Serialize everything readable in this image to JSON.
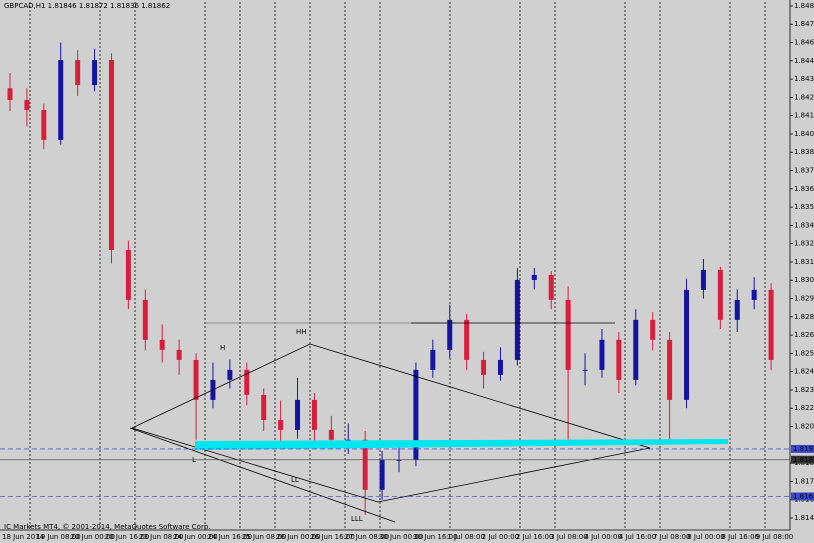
{
  "chart_data": {
    "type": "candlestick",
    "title": "GBPCAD,H1  1.81846 1.81872 1.81836 1.81862",
    "footer": "IC Markets MT4, © 2001-2014, MetaQuotes Software Corp.",
    "annotations": [
      "HH",
      "H",
      "L",
      "LL",
      "LLL"
    ],
    "categories": [
      "18 Jun 2014",
      "19 Jun 08:00",
      "20 Jun 00:00",
      "20 Jun 16:00",
      "23 Jun 08:00",
      "24 Jun 00:00",
      "24 Jun 16:00",
      "25 Jun 08:00",
      "26 Jun 00:00",
      "26 Jun 16:00",
      "27 Jun 08:00",
      "30 Jun 00:00",
      "30 Jun 16:00",
      "1 Jul 08:00",
      "2 Jul 00:00",
      "2 Jul 16:00",
      "3 Jul 08:00",
      "4 Jul 00:00",
      "4 Jul 16:00",
      "7 Jul 08:00",
      "8 Jul 00:00",
      "8 Jul 16:00",
      "9 Jul 08:00"
    ],
    "up_color": "#1414a0",
    "down_color": "#d81e3c",
    "open": [
      1.843,
      1.84223,
      1.84157,
      1.83961,
      1.84485,
      1.84321,
      1.84485,
      1.83239,
      1.82911,
      1.82649,
      1.82583,
      1.82517,
      1.82255,
      1.82386,
      1.82452,
      1.82288,
      1.82123,
      1.82058,
      1.82255,
      1.82058,
      1.81993,
      1.81993,
      1.81665,
      1.81861,
      1.81861,
      1.82452,
      1.82583,
      1.8278,
      1.82517,
      1.82419,
      1.82517,
      1.83042,
      1.83075,
      1.82911,
      1.82452,
      1.82452,
      1.82649,
      1.82386,
      1.8278,
      1.82649,
      1.82255,
      1.82977,
      1.83108,
      1.8278,
      1.82911,
      1.82977
    ],
    "high": [
      1.844,
      1.843,
      1.842,
      1.846,
      1.8455,
      1.8456,
      1.8453,
      1.833,
      1.8298,
      1.8275,
      1.8265,
      1.8256,
      1.825,
      1.8252,
      1.825,
      1.8233,
      1.8225,
      1.824,
      1.823,
      1.8215,
      1.821,
      1.8205,
      1.8192,
      1.8195,
      1.825,
      1.8265,
      1.8288,
      1.8282,
      1.8257,
      1.826,
      1.8312,
      1.8312,
      1.831,
      1.83,
      1.8256,
      1.8272,
      1.827,
      1.8285,
      1.8283,
      1.827,
      1.8305,
      1.8318,
      1.8313,
      1.8298,
      1.8306,
      1.8302
    ],
    "low": [
      1.8415,
      1.8405,
      1.839,
      1.8393,
      1.8425,
      1.8428,
      1.8315,
      1.8285,
      1.8258,
      1.825,
      1.8242,
      1.81993,
      1.822,
      1.8233,
      1.8222,
      1.8205,
      1.8195,
      1.82,
      1.8196,
      1.8193,
      1.819,
      1.81501,
      1.816,
      1.8178,
      1.8182,
      1.824,
      1.8253,
      1.8245,
      1.8233,
      1.8238,
      1.8248,
      1.8298,
      1.8285,
      1.81993,
      1.8235,
      1.824,
      1.823,
      1.8235,
      1.8258,
      1.81993,
      1.822,
      1.8292,
      1.8272,
      1.827,
      1.8285,
      1.8245
    ],
    "close": [
      1.84223,
      1.84157,
      1.83961,
      1.84485,
      1.84321,
      1.84485,
      1.83239,
      1.82911,
      1.82649,
      1.82583,
      1.82517,
      1.82255,
      1.82386,
      1.82452,
      1.82288,
      1.82123,
      1.82058,
      1.82255,
      1.82058,
      1.81993,
      1.81993,
      1.81665,
      1.81861,
      1.81861,
      1.82452,
      1.82583,
      1.8278,
      1.82517,
      1.82419,
      1.82517,
      1.83042,
      1.83075,
      1.82911,
      1.82452,
      1.82452,
      1.82649,
      1.82386,
      1.8278,
      1.82649,
      1.82255,
      1.82977,
      1.83108,
      1.8278,
      1.82911,
      1.82977,
      1.82517
    ],
    "price_levels": [
      {
        "value": 1.81933,
        "label": "1.81933"
      },
      {
        "value": 1.81862,
        "label": "1.81862"
      },
      {
        "value": 1.81621,
        "label": "1.81621"
      }
    ],
    "ylim": [
      1.81401,
      1.84866
    ],
    "yticks": [
      {
        "value": 1.8484,
        "label": "1.84840"
      },
      {
        "value": 1.8472,
        "label": "1.84720"
      },
      {
        "value": 1.846,
        "label": "1.84600"
      },
      {
        "value": 1.8448,
        "label": "1.84480"
      },
      {
        "value": 1.8436,
        "label": "1.84360"
      },
      {
        "value": 1.8424,
        "label": "1.84240"
      },
      {
        "value": 1.8412,
        "label": "1.84120"
      },
      {
        "value": 1.84,
        "label": "1.84000"
      },
      {
        "value": 1.8388,
        "label": "1.83880"
      },
      {
        "value": 1.8376,
        "label": "1.83760"
      },
      {
        "value": 1.8364,
        "label": "1.83640"
      },
      {
        "value": 1.8352,
        "label": "1.83520"
      },
      {
        "value": 1.834,
        "label": "1.83400"
      },
      {
        "value": 1.8328,
        "label": "1.83280"
      },
      {
        "value": 1.8316,
        "label": "1.83160"
      },
      {
        "value": 1.8304,
        "label": "1.83040"
      },
      {
        "value": 1.8292,
        "label": "1.82920"
      },
      {
        "value": 1.828,
        "label": "1.82800"
      },
      {
        "value": 1.8268,
        "label": "1.82680"
      },
      {
        "value": 1.8256,
        "label": "1.82560"
      },
      {
        "value": 1.8244,
        "label": "1.82440"
      },
      {
        "value": 1.8232,
        "label": "1.82320"
      },
      {
        "value": 1.822,
        "label": "1.82200"
      },
      {
        "value": 1.8208,
        "label": "1.82080"
      },
      {
        "value": 1.8184,
        "label": "1.81840"
      },
      {
        "value": 1.8172,
        "label": "1.81720"
      },
      {
        "value": 1.816,
        "label": "1.81600"
      },
      {
        "value": 1.8148,
        "label": "1.81480"
      }
    ]
  }
}
